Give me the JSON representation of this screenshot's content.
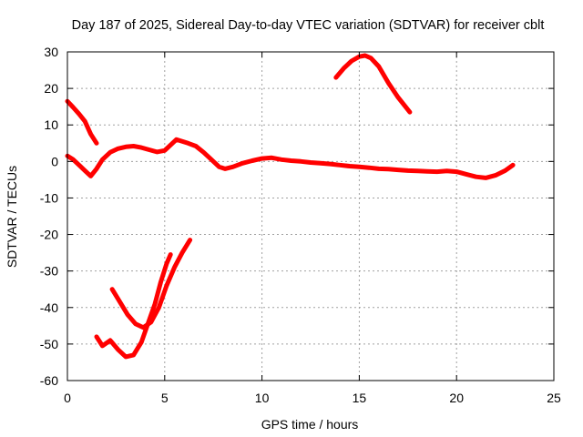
{
  "chart_data": {
    "type": "line",
    "title": "Day 187 of 2025, Sidereal Day-to-day VTEC variation (SDTVAR) for receiver cblt",
    "xlabel": "GPS time / hours",
    "ylabel": "SDTVAR / TECUs",
    "xlim": [
      0,
      25
    ],
    "ylim": [
      -60,
      30
    ],
    "xticks": [
      0,
      5,
      10,
      15,
      20,
      25
    ],
    "yticks": [
      -60,
      -50,
      -40,
      -30,
      -20,
      -10,
      0,
      10,
      20,
      30
    ],
    "grid": true,
    "legend": "none",
    "line_color": "#ff0000",
    "series": [
      {
        "name": "main-track",
        "x": [
          0,
          0.3,
          0.6,
          0.9,
          1.2,
          1.5,
          1.8,
          2.2,
          2.6,
          3.0,
          3.4,
          3.8,
          4.2,
          4.6,
          5.0,
          5.3,
          5.6,
          5.9,
          6.2,
          6.6,
          7.0,
          7.4,
          7.8,
          8.1,
          8.5,
          9.0,
          9.5,
          10.0,
          10.5,
          11.0,
          11.5,
          12.0,
          12.5,
          13.0,
          13.5,
          14.0,
          14.5,
          15.0,
          15.5,
          16.0,
          16.5,
          17.0,
          17.5,
          18.0,
          18.5,
          19.0,
          19.5,
          20.0,
          20.5,
          21.0,
          21.5,
          22.0,
          22.5,
          22.9
        ],
        "values": [
          1.5,
          0.5,
          -1.0,
          -2.5,
          -4.0,
          -2.0,
          0.5,
          2.5,
          3.5,
          4.0,
          4.2,
          3.8,
          3.2,
          2.6,
          3.0,
          4.5,
          6.0,
          5.5,
          5.0,
          4.2,
          2.5,
          0.5,
          -1.5,
          -2.0,
          -1.5,
          -0.5,
          0.2,
          0.8,
          1.0,
          0.5,
          0.2,
          0.0,
          -0.3,
          -0.5,
          -0.7,
          -1.0,
          -1.3,
          -1.5,
          -1.7,
          -2.0,
          -2.1,
          -2.3,
          -2.5,
          -2.6,
          -2.7,
          -2.8,
          -2.6,
          -2.8,
          -3.5,
          -4.2,
          -4.5,
          -3.8,
          -2.5,
          -1.0
        ]
      },
      {
        "name": "upper-left-arc",
        "x": [
          0,
          0.3,
          0.6,
          0.9,
          1.2,
          1.5
        ],
        "values": [
          16.5,
          14.8,
          13.0,
          11.0,
          7.5,
          5.0
        ]
      },
      {
        "name": "upper-right-arc",
        "x": [
          13.8,
          14.2,
          14.6,
          15.0,
          15.3,
          15.6,
          16.0,
          16.5,
          17.0,
          17.6
        ],
        "values": [
          23.0,
          25.5,
          27.5,
          28.7,
          29.0,
          28.3,
          26.0,
          21.5,
          17.5,
          13.5
        ]
      },
      {
        "name": "lower-u-track",
        "x": [
          1.5,
          1.8,
          2.2,
          2.6,
          3.0,
          3.4,
          3.8,
          4.1,
          4.5,
          4.8,
          5.1,
          5.3
        ],
        "values": [
          -48.0,
          -50.5,
          -49.0,
          -51.5,
          -53.5,
          -53.0,
          -49.5,
          -45.0,
          -39.0,
          -33.0,
          -28.0,
          -25.5
        ]
      },
      {
        "name": "lower-v-track",
        "x": [
          2.3,
          2.7,
          3.1,
          3.5,
          3.9,
          4.3,
          4.7,
          5.1,
          5.5,
          5.9,
          6.3
        ],
        "values": [
          -35.0,
          -38.5,
          -42.0,
          -44.5,
          -45.5,
          -44.0,
          -40.0,
          -34.0,
          -29.0,
          -25.0,
          -21.5
        ]
      }
    ]
  }
}
